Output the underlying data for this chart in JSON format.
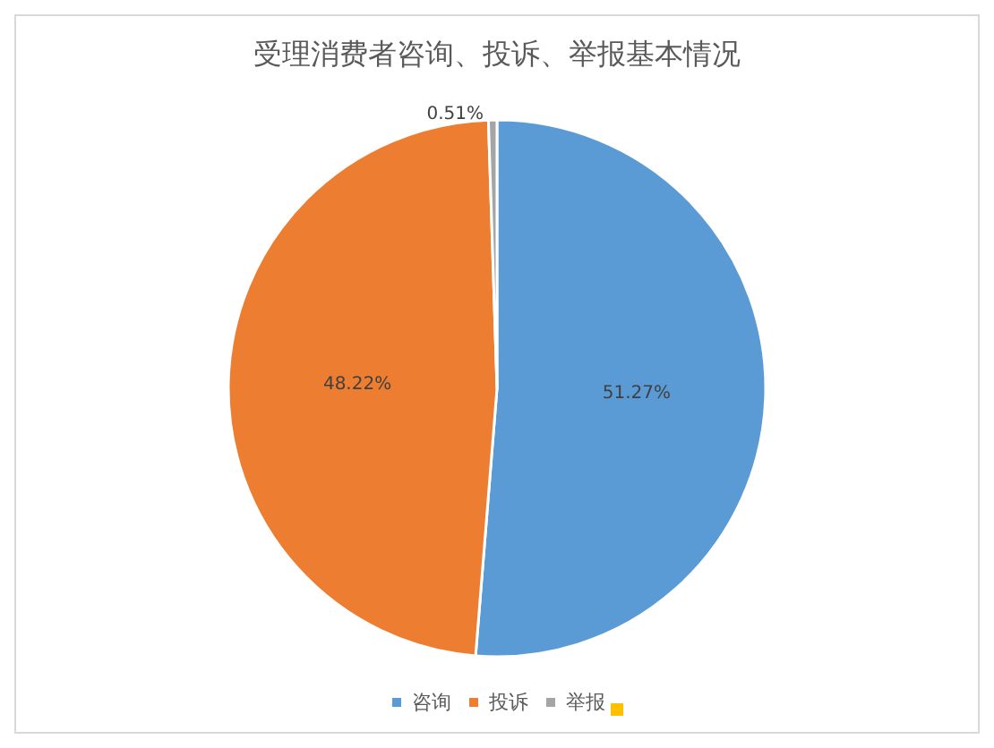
{
  "chart_data": {
    "type": "pie",
    "title": "受理消费者咨询、投诉、举报基本情况",
    "categories": [
      "咨询",
      "投诉",
      "举报"
    ],
    "values": [
      51.27,
      48.22,
      0.51
    ],
    "value_labels": [
      "51.27%",
      "48.22%",
      "0.51%"
    ],
    "colors": [
      "#5b9bd5",
      "#ed7d31",
      "#a5a5a5"
    ],
    "legend": "bottom"
  }
}
